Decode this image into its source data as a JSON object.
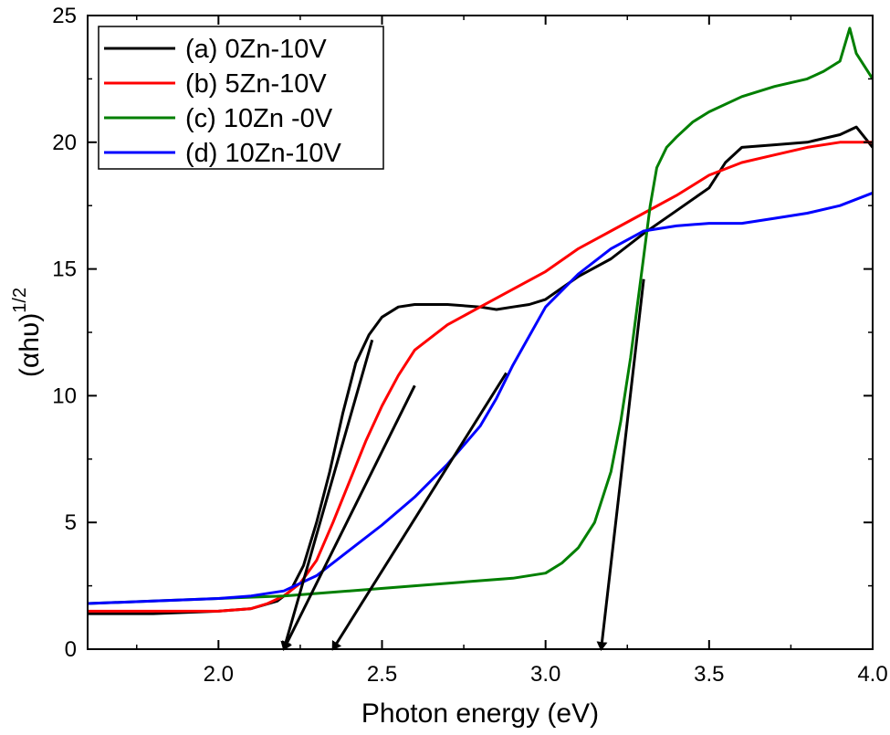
{
  "chart_data": {
    "type": "line",
    "title": "",
    "xlabel": "Photon energy (eV)",
    "ylabel_main": "(αhυ)",
    "ylabel_sup": "1/2",
    "xlim": [
      1.6,
      4.0
    ],
    "ylim": [
      0,
      25
    ],
    "xticks": [
      2.0,
      2.5,
      3.0,
      3.5,
      4.0
    ],
    "xtick_labels": [
      "2.0",
      "2.5",
      "3.0",
      "3.5",
      "4.0"
    ],
    "yticks": [
      0,
      5,
      10,
      15,
      20,
      25
    ],
    "ytick_labels": [
      "0",
      "5",
      "10",
      "15",
      "20",
      "25"
    ],
    "legend_position": "top-left",
    "series": [
      {
        "name": "(a) 0Zn-10V",
        "color": "#000000",
        "x": [
          1.6,
          1.8,
          2.0,
          2.1,
          2.18,
          2.22,
          2.26,
          2.3,
          2.34,
          2.38,
          2.42,
          2.46,
          2.5,
          2.55,
          2.6,
          2.7,
          2.8,
          2.85,
          2.9,
          2.95,
          3.0,
          3.1,
          3.2,
          3.3,
          3.4,
          3.5,
          3.55,
          3.6,
          3.7,
          3.8,
          3.9,
          3.95,
          4.0
        ],
        "y": [
          1.4,
          1.4,
          1.5,
          1.6,
          1.9,
          2.3,
          3.3,
          5.0,
          7.0,
          9.3,
          11.3,
          12.4,
          13.1,
          13.5,
          13.6,
          13.6,
          13.5,
          13.4,
          13.5,
          13.6,
          13.8,
          14.7,
          15.4,
          16.4,
          17.3,
          18.2,
          19.2,
          19.8,
          19.9,
          20.0,
          20.3,
          20.6,
          19.8
        ]
      },
      {
        "name": "(b) 5Zn-10V",
        "color": "#ff0000",
        "x": [
          1.6,
          1.8,
          2.0,
          2.1,
          2.15,
          2.2,
          2.25,
          2.3,
          2.35,
          2.4,
          2.45,
          2.5,
          2.55,
          2.6,
          2.7,
          2.8,
          2.9,
          3.0,
          3.1,
          3.2,
          3.3,
          3.4,
          3.5,
          3.6,
          3.7,
          3.8,
          3.9,
          4.0
        ],
        "y": [
          1.5,
          1.5,
          1.5,
          1.6,
          1.8,
          2.1,
          2.6,
          3.5,
          5.0,
          6.6,
          8.2,
          9.6,
          10.8,
          11.8,
          12.8,
          13.5,
          14.2,
          14.9,
          15.8,
          16.5,
          17.2,
          17.9,
          18.7,
          19.2,
          19.5,
          19.8,
          20.0,
          20.0
        ]
      },
      {
        "name": "(c) 10Zn -0V",
        "color": "#007f00",
        "x": [
          1.6,
          1.8,
          2.0,
          2.2,
          2.4,
          2.6,
          2.8,
          2.9,
          3.0,
          3.05,
          3.1,
          3.15,
          3.2,
          3.23,
          3.26,
          3.28,
          3.3,
          3.32,
          3.34,
          3.37,
          3.4,
          3.45,
          3.5,
          3.6,
          3.7,
          3.8,
          3.85,
          3.9,
          3.93,
          3.95,
          4.0
        ],
        "y": [
          1.8,
          1.9,
          2.0,
          2.1,
          2.3,
          2.5,
          2.7,
          2.8,
          3.0,
          3.4,
          4.0,
          5.0,
          7.0,
          9.0,
          11.5,
          13.5,
          15.5,
          17.5,
          19.0,
          19.8,
          20.2,
          20.8,
          21.2,
          21.8,
          22.2,
          22.5,
          22.8,
          23.2,
          24.5,
          23.5,
          22.5
        ]
      },
      {
        "name": "(d) 10Zn-10V",
        "color": "#0000ff",
        "x": [
          1.6,
          1.8,
          2.0,
          2.1,
          2.2,
          2.3,
          2.4,
          2.5,
          2.6,
          2.7,
          2.8,
          2.85,
          2.9,
          3.0,
          3.1,
          3.2,
          3.3,
          3.4,
          3.5,
          3.6,
          3.7,
          3.8,
          3.9,
          4.0
        ],
        "y": [
          1.8,
          1.9,
          2.0,
          2.1,
          2.3,
          2.9,
          3.9,
          4.9,
          6.0,
          7.3,
          8.8,
          9.9,
          11.2,
          13.5,
          14.8,
          15.8,
          16.5,
          16.7,
          16.8,
          16.8,
          17.0,
          17.2,
          17.5,
          18.0
        ]
      }
    ],
    "tangent_lines": [
      {
        "series": "(a) 0Zn-10V",
        "from": [
          2.47,
          12.2
        ],
        "to": [
          2.2,
          0
        ],
        "arrow": true
      },
      {
        "series": "(b) 5Zn-10V",
        "from": [
          2.6,
          10.4
        ],
        "to": [
          2.2,
          0
        ],
        "arrow": true
      },
      {
        "series": "(d) 10Zn-10V",
        "from": [
          2.88,
          10.9
        ],
        "to": [
          2.35,
          0
        ],
        "arrow": true
      },
      {
        "series": "(c) 10Zn -0V",
        "from": [
          3.3,
          14.6
        ],
        "to": [
          3.17,
          0
        ],
        "arrow": true
      }
    ]
  }
}
